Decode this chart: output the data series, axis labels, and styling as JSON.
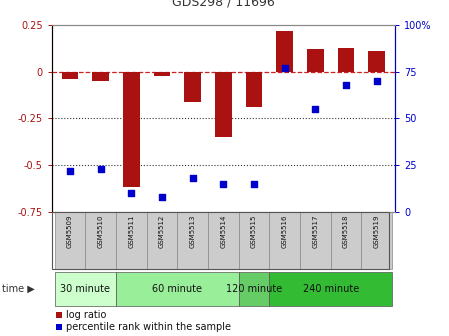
{
  "title": "GDS298 / 11696",
  "samples": [
    "GSM5509",
    "GSM5510",
    "GSM5511",
    "GSM5512",
    "GSM5513",
    "GSM5514",
    "GSM5515",
    "GSM5516",
    "GSM5517",
    "GSM5518",
    "GSM5519"
  ],
  "log_ratio": [
    -0.04,
    -0.05,
    -0.62,
    -0.02,
    -0.16,
    -0.35,
    -0.19,
    0.22,
    0.12,
    0.13,
    0.11
  ],
  "percentile": [
    22,
    23,
    10,
    8,
    18,
    15,
    15,
    77,
    55,
    68,
    70
  ],
  "groups": [
    {
      "label": "30 minute",
      "start": 0,
      "end": 1,
      "color": "#ccffcc"
    },
    {
      "label": "60 minute",
      "start": 2,
      "end": 5,
      "color": "#99ee99"
    },
    {
      "label": "120 minute",
      "start": 6,
      "end": 6,
      "color": "#66dd66"
    },
    {
      "label": "240 minute",
      "start": 7,
      "end": 10,
      "color": "#33cc33"
    }
  ],
  "bar_color": "#aa1111",
  "dot_color": "#0000cc",
  "hline_color": "#cc2222",
  "dotted_color": "#333333",
  "left_ylim": [
    -0.75,
    0.25
  ],
  "right_ylim": [
    0,
    100
  ],
  "left_yticks": [
    -0.75,
    -0.5,
    -0.25,
    0,
    0.25
  ],
  "right_yticks": [
    0,
    25,
    50,
    75,
    100
  ],
  "hline_dotted_vals": [
    -0.5,
    -0.25
  ],
  "bar_width": 0.55
}
